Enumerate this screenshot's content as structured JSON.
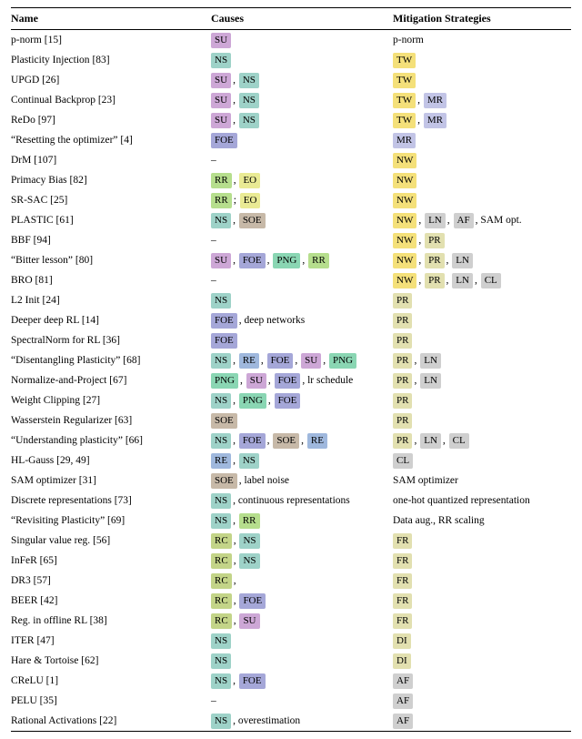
{
  "columns": {
    "c0": "Name",
    "c1": "Causes",
    "c2": "Mitigation Strategies"
  },
  "tag_colors": {
    "SU": "#cda7d6",
    "NS": "#9ed2c8",
    "FOE": "#a5a7d8",
    "RR": "#b6de8d",
    "EO": "#e9ea94",
    "SOE": "#c7b9a8",
    "PNG": "#8ad6b3",
    "RE": "#9fb8dd",
    "RC": "#c3d488",
    "TW": "#f4e07a",
    "MR": "#c2c4e6",
    "NW": "#f4e07a",
    "LN": "#cfcfcf",
    "AF": "#cfcfcf",
    "PR": "#e2e0b0",
    "CL": "#cfcfcf",
    "FR": "#e2e0b0",
    "DI": "#e2e0b0"
  },
  "rows": [
    {
      "name": "p-norm",
      "ref": "[15]",
      "causes": [
        {
          "t": "SU"
        }
      ],
      "mit_text_pre": "p-norm",
      "mit": []
    },
    {
      "name": "Plasticity Injection",
      "ref": "[83]",
      "causes": [
        {
          "t": "NS"
        }
      ],
      "mit": [
        {
          "t": "TW"
        }
      ]
    },
    {
      "name": "UPGD",
      "ref": "[26]",
      "causes": [
        {
          "t": "SU"
        },
        {
          "text": ","
        },
        {
          "t": "NS"
        }
      ],
      "mit": [
        {
          "t": "TW"
        }
      ]
    },
    {
      "name": "Continual Backprop",
      "ref": "[23]",
      "causes": [
        {
          "t": "SU"
        },
        {
          "text": ","
        },
        {
          "t": "NS"
        }
      ],
      "mit": [
        {
          "t": "TW"
        },
        {
          "text": ","
        },
        {
          "t": "MR"
        }
      ]
    },
    {
      "name": "ReDo",
      "ref": "[97]",
      "causes": [
        {
          "t": "SU"
        },
        {
          "text": ","
        },
        {
          "t": "NS"
        }
      ],
      "mit": [
        {
          "t": "TW"
        },
        {
          "text": ","
        },
        {
          "t": "MR"
        }
      ]
    },
    {
      "name": "“Resetting the optimizer”",
      "ref": "[4]",
      "causes": [
        {
          "t": "FOE"
        }
      ],
      "mit": [
        {
          "t": "MR"
        }
      ]
    },
    {
      "name": "DrM",
      "ref": "[107]",
      "causes": [
        {
          "text": "–"
        }
      ],
      "mit": [
        {
          "t": "NW"
        }
      ]
    },
    {
      "name": "Primacy Bias",
      "ref": "[82]",
      "causes": [
        {
          "t": "RR"
        },
        {
          "text": ","
        },
        {
          "t": "EO"
        }
      ],
      "mit": [
        {
          "t": "NW"
        }
      ]
    },
    {
      "name": "SR-SAC",
      "ref": "[25]",
      "causes": [
        {
          "t": "RR"
        },
        {
          "text": ";"
        },
        {
          "t": "EO"
        }
      ],
      "mit": [
        {
          "t": "NW"
        }
      ]
    },
    {
      "name": "PLASTIC",
      "ref": "[61]",
      "causes": [
        {
          "t": "NS"
        },
        {
          "text": ","
        },
        {
          "t": "SOE"
        }
      ],
      "mit": [
        {
          "t": "NW"
        },
        {
          "text": ","
        },
        {
          "t": "LN"
        },
        {
          "text": ","
        },
        {
          "t": "AF"
        },
        {
          "text": ", SAM opt."
        }
      ]
    },
    {
      "name": "BBF",
      "ref": "[94]",
      "causes": [
        {
          "text": "–"
        }
      ],
      "mit": [
        {
          "t": "NW"
        },
        {
          "text": ","
        },
        {
          "t": "PR"
        }
      ]
    },
    {
      "name": "“Bitter lesson”",
      "ref": "[80]",
      "causes": [
        {
          "t": "SU"
        },
        {
          "text": ","
        },
        {
          "t": "FOE"
        },
        {
          "text": ","
        },
        {
          "t": "PNG"
        },
        {
          "text": ","
        },
        {
          "t": "RR"
        }
      ],
      "mit": [
        {
          "t": "NW"
        },
        {
          "text": ","
        },
        {
          "t": "PR"
        },
        {
          "text": ","
        },
        {
          "t": "LN"
        }
      ]
    },
    {
      "name": "BRO",
      "ref": "[81]",
      "causes": [
        {
          "text": "–"
        }
      ],
      "mit": [
        {
          "t": "NW"
        },
        {
          "text": ","
        },
        {
          "t": "PR"
        },
        {
          "text": ","
        },
        {
          "t": "LN"
        },
        {
          "text": ","
        },
        {
          "t": "CL"
        }
      ]
    },
    {
      "name": "L2 Init",
      "ref": "[24]",
      "causes": [
        {
          "t": "NS"
        }
      ],
      "mit": [
        {
          "t": "PR"
        }
      ]
    },
    {
      "name": "Deeper deep RL",
      "ref": "[14]",
      "causes": [
        {
          "t": "FOE"
        },
        {
          "text": ", deep networks"
        }
      ],
      "mit": [
        {
          "t": "PR"
        }
      ]
    },
    {
      "name": "SpectralNorm for RL",
      "ref": "[36]",
      "causes": [
        {
          "t": "FOE"
        }
      ],
      "mit": [
        {
          "t": "PR"
        }
      ]
    },
    {
      "name": "“Disentangling Plasticity”",
      "ref": "[68]",
      "causes": [
        {
          "t": "NS"
        },
        {
          "text": ","
        },
        {
          "t": "RE"
        },
        {
          "text": ","
        },
        {
          "t": "FOE"
        },
        {
          "text": ","
        },
        {
          "t": "SU"
        },
        {
          "text": ","
        },
        {
          "t": "PNG"
        }
      ],
      "mit": [
        {
          "t": "PR"
        },
        {
          "text": ","
        },
        {
          "t": "LN"
        }
      ]
    },
    {
      "name": "Normalize-and-Project",
      "ref": "[67]",
      "causes": [
        {
          "t": "PNG"
        },
        {
          "text": ","
        },
        {
          "t": "SU"
        },
        {
          "text": ","
        },
        {
          "t": "FOE"
        },
        {
          "text": ", lr schedule"
        }
      ],
      "mit": [
        {
          "t": "PR"
        },
        {
          "text": ","
        },
        {
          "t": "LN"
        }
      ]
    },
    {
      "name": "Weight Clipping",
      "ref": "[27]",
      "causes": [
        {
          "t": "NS"
        },
        {
          "text": ","
        },
        {
          "t": "PNG"
        },
        {
          "text": ","
        },
        {
          "t": "FOE"
        }
      ],
      "mit": [
        {
          "t": "PR"
        }
      ]
    },
    {
      "name": "Wasserstein Regularizer",
      "ref": "[63]",
      "causes": [
        {
          "t": "SOE"
        }
      ],
      "mit": [
        {
          "t": "PR"
        }
      ]
    },
    {
      "name": "“Understanding plasticity”",
      "ref": "[66]",
      "causes": [
        {
          "t": "NS"
        },
        {
          "text": ","
        },
        {
          "t": "FOE"
        },
        {
          "text": ","
        },
        {
          "t": "SOE"
        },
        {
          "text": ","
        },
        {
          "t": "RE"
        }
      ],
      "mit": [
        {
          "t": "PR"
        },
        {
          "text": ","
        },
        {
          "t": "LN"
        },
        {
          "text": ","
        },
        {
          "t": "CL"
        }
      ]
    },
    {
      "name": "HL-Gauss",
      "ref": "[29, 49]",
      "causes": [
        {
          "t": "RE"
        },
        {
          "text": ","
        },
        {
          "t": "NS"
        }
      ],
      "mit": [
        {
          "t": "CL"
        }
      ]
    },
    {
      "name": "SAM optimizer",
      "ref": "[31]",
      "causes": [
        {
          "t": "SOE"
        },
        {
          "text": ", label noise"
        }
      ],
      "mit_text_pre": "SAM optimizer",
      "mit": []
    },
    {
      "name": "Discrete representations",
      "ref": "[73]",
      "causes": [
        {
          "t": "NS"
        },
        {
          "text": ", continuous representations"
        }
      ],
      "mit_text_pre": "one-hot quantized representation",
      "mit": []
    },
    {
      "name": "“Revisiting Plasticity”",
      "ref": "[69]",
      "causes": [
        {
          "t": "NS"
        },
        {
          "text": ","
        },
        {
          "t": "RR"
        }
      ],
      "mit_text_pre": "Data aug., RR scaling",
      "mit": []
    },
    {
      "name": "Singular value reg.",
      "ref": "[56]",
      "causes": [
        {
          "t": "RC"
        },
        {
          "text": ","
        },
        {
          "t": "NS"
        }
      ],
      "mit": [
        {
          "t": "FR"
        }
      ]
    },
    {
      "name": "InFeR",
      "ref": "[65]",
      "causes": [
        {
          "t": "RC"
        },
        {
          "text": ","
        },
        {
          "t": "NS"
        }
      ],
      "mit": [
        {
          "t": "FR"
        }
      ]
    },
    {
      "name": "DR3",
      "ref": "[57]",
      "causes": [
        {
          "t": "RC"
        },
        {
          "text": ","
        }
      ],
      "mit": [
        {
          "t": "FR"
        }
      ]
    },
    {
      "name": "BEER",
      "ref": "[42]",
      "causes": [
        {
          "t": "RC"
        },
        {
          "text": ","
        },
        {
          "t": "FOE"
        }
      ],
      "mit": [
        {
          "t": "FR"
        }
      ]
    },
    {
      "name": "Reg. in offline RL",
      "ref": "[38]",
      "causes": [
        {
          "t": "RC"
        },
        {
          "text": ","
        },
        {
          "t": "SU"
        }
      ],
      "mit": [
        {
          "t": "FR"
        }
      ]
    },
    {
      "name": "ITER",
      "ref": "[47]",
      "causes": [
        {
          "t": "NS"
        }
      ],
      "mit": [
        {
          "t": "DI"
        }
      ]
    },
    {
      "name": "Hare & Tortoise",
      "ref": "[62]",
      "causes": [
        {
          "t": "NS"
        }
      ],
      "mit": [
        {
          "t": "DI"
        }
      ]
    },
    {
      "name": "CReLU",
      "ref": "[1]",
      "causes": [
        {
          "t": "NS"
        },
        {
          "text": ","
        },
        {
          "t": "FOE"
        }
      ],
      "mit": [
        {
          "t": "AF"
        }
      ]
    },
    {
      "name": "PELU",
      "ref": "[35]",
      "causes": [
        {
          "text": "–"
        }
      ],
      "mit": [
        {
          "t": "AF"
        }
      ]
    },
    {
      "name": "Rational Activations",
      "ref": "[22]",
      "causes": [
        {
          "t": "NS"
        },
        {
          "text": ", overestimation"
        }
      ],
      "mit": [
        {
          "t": "AF"
        }
      ]
    }
  ]
}
